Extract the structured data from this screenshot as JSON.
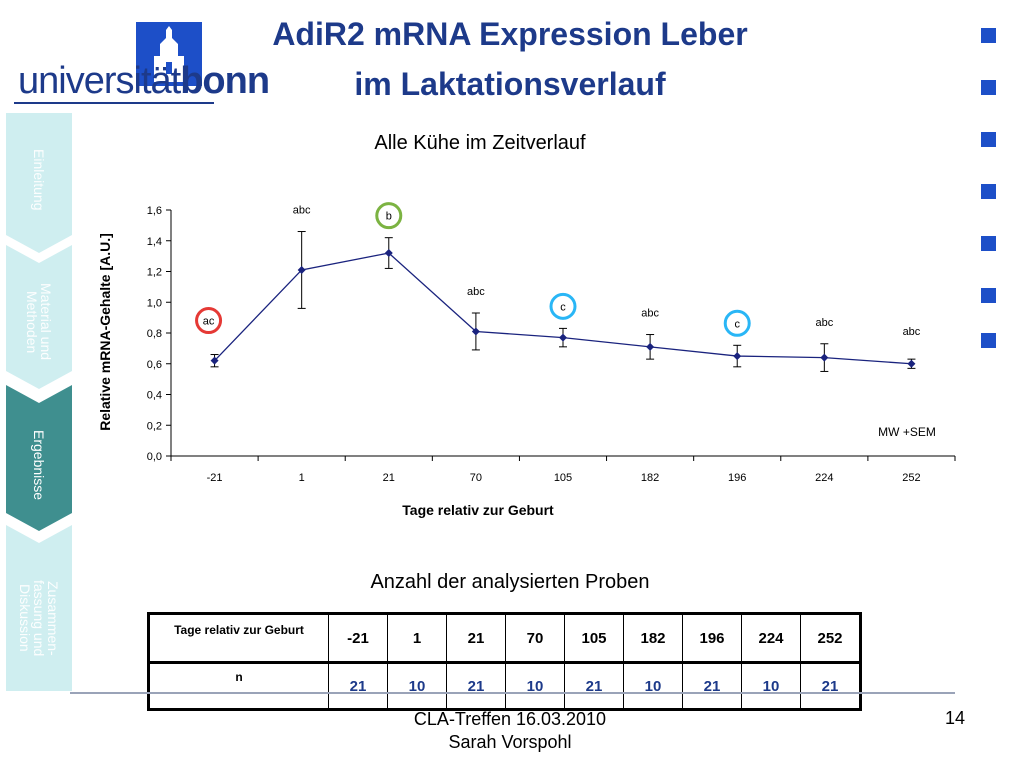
{
  "logo": {
    "text_light": "universität",
    "text_bold": "bonn"
  },
  "title": {
    "line1": "AdiR2 mRNA Expression Leber",
    "line2": "im Laktationsverlauf"
  },
  "sidebar": {
    "items": [
      {
        "label": "Einleitung",
        "active": false,
        "color": "#cfeef0"
      },
      {
        "label": "Material und\nMethoden",
        "active": false,
        "color": "#cfeef0"
      },
      {
        "label": "Ergebnisse",
        "active": true,
        "color": "#3f8f8f"
      },
      {
        "label": "Zusammen-\nfassung und\nDiskussion",
        "active": false,
        "color": "#cfeef0"
      }
    ]
  },
  "colors": {
    "brand_blue": "#1d3a8a",
    "square_blue": "#1d4fc8",
    "line_navy": "#1a237e",
    "circle_red": "#e53935",
    "circle_green": "#7cb342",
    "circle_cyan": "#29b6f6"
  },
  "chart_data": {
    "type": "line",
    "title": "Alle Kühe im Zeitverlauf",
    "xlabel": "Tage relativ zur Geburt",
    "ylabel": "Relative mRNA-Gehalte [A.U.]",
    "categories": [
      "-21",
      "1",
      "21",
      "70",
      "105",
      "182",
      "196",
      "224",
      "252"
    ],
    "values": [
      0.62,
      1.21,
      1.32,
      0.81,
      0.77,
      0.71,
      0.65,
      0.64,
      0.6
    ],
    "errors": [
      0.04,
      0.25,
      0.1,
      0.12,
      0.06,
      0.08,
      0.07,
      0.09,
      0.03
    ],
    "significance_labels": [
      "ac",
      "abc",
      "b",
      "abc",
      "c",
      "abc",
      "c",
      "abc",
      "abc"
    ],
    "circled": [
      "red",
      null,
      "green",
      null,
      "cyan",
      null,
      "cyan",
      null,
      null
    ],
    "ylim": [
      0,
      1.6
    ],
    "yticks": [
      "0,0",
      "0,2",
      "0,4",
      "0,6",
      "0,8",
      "1,0",
      "1,2",
      "1,4",
      "1,6"
    ],
    "annotation": "MW +SEM",
    "grid": false
  },
  "table": {
    "title": "Anzahl der analysierten Proben",
    "header_label": "Tage relativ zur Geburt",
    "row_label": "n",
    "days": [
      "-21",
      "1",
      "21",
      "70",
      "105",
      "182",
      "196",
      "224",
      "252"
    ],
    "n": [
      "21",
      "10",
      "21",
      "10",
      "21",
      "10",
      "21",
      "10",
      "21"
    ]
  },
  "footer": {
    "line1": "CLA-Treffen 16.03.2010",
    "line2": "Sarah Vorspohl",
    "page": "14"
  }
}
